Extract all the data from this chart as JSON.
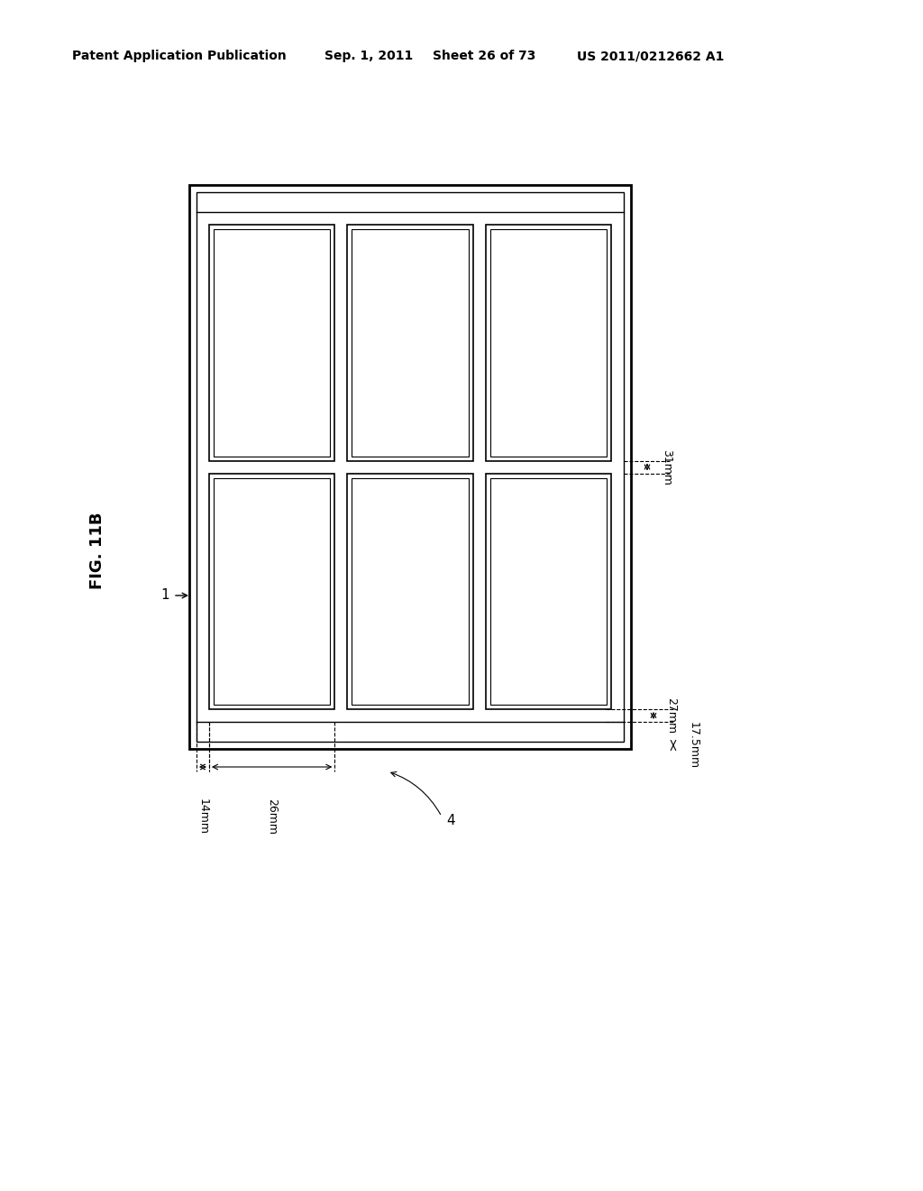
{
  "bg_color": "#ffffff",
  "line_color": "#000000",
  "header_text": "Patent Application Publication",
  "header_date": "Sep. 1, 2011",
  "header_sheet": "Sheet 26 of 73",
  "header_patent": "US 2011/0212662 A1",
  "fig_label": "FIG. 11B",
  "label_1": "1",
  "label_4": "4",
  "dim_14mm": "14mm",
  "dim_26mm": "26mm",
  "dim_27mm": "27mm",
  "dim_17_5mm": "17.5mm",
  "dim_31mm": "31mm"
}
